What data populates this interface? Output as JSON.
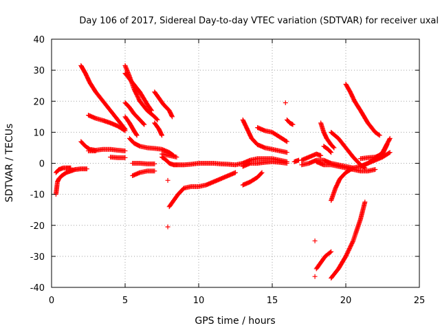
{
  "chart_data": {
    "type": "scatter",
    "title": "Day 106 of 2017, Sidereal Day-to-day VTEC variation (SDTVAR) for receiver uxal",
    "xlabel": "GPS time / hours",
    "ylabel": "SDTVAR / TECUs",
    "xlim": [
      0,
      25
    ],
    "ylim": [
      -40,
      40
    ],
    "x_ticks": [
      "0",
      "5",
      "10",
      "15",
      "20",
      "25"
    ],
    "y_ticks": [
      "-40",
      "-30",
      "-20",
      "-10",
      "0",
      "10",
      "20",
      "30",
      "40"
    ],
    "grid": true,
    "marker": "plus",
    "color": "#ff0000",
    "tracks": [
      [
        [
          0.3,
          -10
        ],
        [
          0.35,
          -8
        ],
        [
          0.4,
          -6
        ],
        [
          0.5,
          -5
        ],
        [
          0.7,
          -4
        ],
        [
          1.0,
          -3
        ],
        [
          1.3,
          -2.5
        ],
        [
          1.6,
          -2
        ],
        [
          2.0,
          -1.8
        ],
        [
          2.4,
          -1.8
        ]
      ],
      [
        [
          0.3,
          -3
        ],
        [
          0.5,
          -2
        ],
        [
          0.8,
          -1.5
        ],
        [
          1.0,
          -1.5
        ],
        [
          1.3,
          -1.5
        ]
      ],
      [
        [
          2.0,
          31.5
        ],
        [
          2.3,
          29
        ],
        [
          2.6,
          26
        ],
        [
          3.0,
          23
        ],
        [
          3.5,
          20
        ],
        [
          4.0,
          17
        ],
        [
          4.5,
          14
        ],
        [
          5.0,
          11
        ]
      ],
      [
        [
          2.5,
          15.5
        ],
        [
          3.0,
          14.5
        ],
        [
          3.5,
          13.8
        ],
        [
          4.0,
          13
        ],
        [
          4.5,
          12
        ],
        [
          5.0,
          10.5
        ]
      ],
      [
        [
          2.0,
          7
        ],
        [
          2.3,
          5.5
        ],
        [
          2.6,
          4.5
        ],
        [
          3.0,
          4.2
        ],
        [
          3.5,
          4.5
        ],
        [
          4.0,
          4.5
        ],
        [
          4.5,
          4.2
        ],
        [
          5.0,
          4
        ]
      ],
      [
        [
          2.5,
          4
        ],
        [
          3.0,
          4
        ]
      ],
      [
        [
          4.0,
          2
        ],
        [
          4.5,
          1.8
        ],
        [
          5.0,
          1.8
        ]
      ],
      [
        [
          5.0,
          31.5
        ],
        [
          5.3,
          28
        ],
        [
          5.6,
          24
        ],
        [
          6.0,
          20
        ],
        [
          6.5,
          17
        ],
        [
          7.0,
          15
        ],
        [
          7.2,
          14
        ]
      ],
      [
        [
          5.0,
          29
        ],
        [
          5.5,
          26
        ],
        [
          6.0,
          23
        ],
        [
          6.5,
          19
        ],
        [
          6.8,
          17
        ]
      ],
      [
        [
          5.0,
          19.5
        ],
        [
          5.3,
          18
        ],
        [
          5.6,
          16
        ],
        [
          6.0,
          14
        ],
        [
          6.3,
          12.5
        ]
      ],
      [
        [
          5.0,
          15
        ],
        [
          5.3,
          13
        ],
        [
          5.6,
          10.5
        ],
        [
          5.8,
          9
        ]
      ],
      [
        [
          7.0,
          23
        ],
        [
          7.3,
          21
        ],
        [
          7.6,
          19
        ],
        [
          8.0,
          17
        ],
        [
          8.2,
          15
        ]
      ],
      [
        [
          7.0,
          13
        ],
        [
          7.3,
          11
        ],
        [
          7.5,
          9
        ]
      ],
      [
        [
          5.3,
          8
        ],
        [
          5.6,
          6.5
        ],
        [
          6.0,
          5.5
        ],
        [
          6.5,
          5
        ],
        [
          7.0,
          4.8
        ],
        [
          7.5,
          4.5
        ],
        [
          8.0,
          3.5
        ],
        [
          8.3,
          2.5
        ]
      ],
      [
        [
          5.5,
          0
        ],
        [
          6.0,
          0
        ],
        [
          6.5,
          -0.2
        ],
        [
          7.0,
          -0.2
        ]
      ],
      [
        [
          5.5,
          -4
        ],
        [
          6.0,
          -3
        ],
        [
          6.5,
          -2.5
        ],
        [
          7.0,
          -2.5
        ]
      ],
      [
        [
          7.5,
          2
        ],
        [
          7.8,
          1
        ],
        [
          8.0,
          0
        ],
        [
          8.3,
          -0.5
        ],
        [
          8.6,
          -0.5
        ],
        [
          9.0,
          -0.5
        ],
        [
          9.5,
          -0.3
        ],
        [
          10.0,
          0
        ],
        [
          10.5,
          0
        ],
        [
          11.0,
          0
        ],
        [
          11.5,
          -0.2
        ],
        [
          12.0,
          -0.3
        ],
        [
          12.5,
          -0.5
        ],
        [
          13.0,
          0
        ]
      ],
      [
        [
          7.5,
          3
        ],
        [
          8.0,
          2.5
        ],
        [
          8.5,
          2
        ]
      ],
      [
        [
          8.0,
          -14
        ],
        [
          8.3,
          -12
        ],
        [
          8.6,
          -10
        ],
        [
          9.0,
          -8
        ],
        [
          9.5,
          -7.5
        ],
        [
          10.0,
          -7.5
        ],
        [
          10.5,
          -7
        ],
        [
          11.0,
          -6
        ],
        [
          11.5,
          -5
        ],
        [
          12.0,
          -4
        ],
        [
          12.5,
          -3
        ]
      ],
      [
        [
          7.9,
          -5.5
        ]
      ],
      [
        [
          7.9,
          -20.5
        ]
      ],
      [
        [
          13.0,
          14
        ],
        [
          13.3,
          11
        ],
        [
          13.6,
          8
        ],
        [
          14.0,
          6
        ],
        [
          14.5,
          5
        ],
        [
          15.0,
          4.5
        ],
        [
          15.5,
          4
        ],
        [
          16.0,
          3.5
        ]
      ],
      [
        [
          14.0,
          11.5
        ],
        [
          14.5,
          10.5
        ],
        [
          15.0,
          10
        ],
        [
          15.5,
          8.5
        ],
        [
          16.0,
          7
        ]
      ],
      [
        [
          13.0,
          0
        ],
        [
          13.5,
          1
        ],
        [
          14.0,
          1.5
        ],
        [
          14.5,
          1.5
        ],
        [
          15.0,
          1.5
        ],
        [
          15.5,
          1
        ],
        [
          16.0,
          0.5
        ]
      ],
      [
        [
          13.0,
          -1
        ],
        [
          13.5,
          0
        ],
        [
          14.0,
          0
        ],
        [
          14.5,
          0.3
        ],
        [
          15.0,
          0.5
        ],
        [
          15.5,
          0.3
        ],
        [
          16.0,
          0
        ]
      ],
      [
        [
          13.0,
          -7
        ],
        [
          13.5,
          -6
        ],
        [
          14.0,
          -4.5
        ],
        [
          14.3,
          -3
        ]
      ],
      [
        [
          15.9,
          19.5
        ]
      ],
      [
        [
          16.0,
          14
        ],
        [
          16.2,
          13
        ],
        [
          16.4,
          12.5
        ]
      ],
      [
        [
          16.5,
          0.5
        ],
        [
          16.8,
          1
        ]
      ],
      [
        [
          17.0,
          1
        ],
        [
          17.5,
          2
        ],
        [
          18.0,
          3
        ],
        [
          18.3,
          2.5
        ]
      ],
      [
        [
          17.0,
          -0.5
        ],
        [
          17.5,
          0
        ],
        [
          18.0,
          1
        ],
        [
          18.5,
          1
        ],
        [
          19.0,
          0
        ],
        [
          19.5,
          -0.5
        ],
        [
          20.0,
          -1
        ],
        [
          20.5,
          -1.5
        ]
      ],
      [
        [
          18.0,
          0.5
        ],
        [
          18.5,
          -0.5
        ],
        [
          19.0,
          -0.5
        ],
        [
          19.5,
          -1
        ],
        [
          20.0,
          -1.5
        ],
        [
          20.5,
          -2
        ],
        [
          21.0,
          -2.5
        ],
        [
          21.5,
          -2.5
        ],
        [
          22.0,
          -2
        ]
      ],
      [
        [
          18.3,
          13
        ],
        [
          18.5,
          10
        ],
        [
          18.7,
          8
        ],
        [
          19.0,
          6
        ],
        [
          19.2,
          5
        ]
      ],
      [
        [
          18.5,
          5.5
        ],
        [
          18.8,
          4.5
        ],
        [
          19.0,
          3.5
        ]
      ],
      [
        [
          19.0,
          10
        ],
        [
          19.5,
          8
        ],
        [
          20.0,
          5
        ],
        [
          20.5,
          2
        ],
        [
          21.0,
          -0.5
        ],
        [
          21.3,
          -1.5
        ]
      ],
      [
        [
          20.0,
          25.5
        ],
        [
          20.3,
          23
        ],
        [
          20.6,
          20
        ],
        [
          21.0,
          17
        ],
        [
          21.5,
          13
        ],
        [
          22.0,
          10
        ],
        [
          22.3,
          9
        ]
      ],
      [
        [
          19.0,
          -12
        ],
        [
          19.3,
          -8
        ],
        [
          19.6,
          -5
        ],
        [
          20.0,
          -3
        ],
        [
          20.5,
          -1.5
        ],
        [
          21.0,
          -1
        ],
        [
          21.5,
          0
        ],
        [
          22.0,
          1
        ],
        [
          22.5,
          2
        ],
        [
          23.0,
          3.5
        ]
      ],
      [
        [
          21.0,
          -1
        ],
        [
          21.5,
          0
        ],
        [
          22.0,
          1.5
        ],
        [
          22.5,
          3.5
        ],
        [
          23.0,
          8
        ]
      ],
      [
        [
          21.0,
          1.5
        ],
        [
          21.5,
          1.8
        ],
        [
          22.0,
          2
        ],
        [
          22.5,
          3
        ],
        [
          22.8,
          6
        ]
      ],
      [
        [
          19.0,
          -37
        ],
        [
          19.5,
          -34
        ],
        [
          20.0,
          -30
        ],
        [
          20.5,
          -25
        ],
        [
          21.0,
          -18
        ],
        [
          21.3,
          -12.5
        ]
      ],
      [
        [
          18.0,
          -34
        ],
        [
          18.3,
          -32
        ],
        [
          18.6,
          -30
        ],
        [
          19.0,
          -28.5
        ]
      ],
      [
        [
          17.9,
          -25
        ]
      ],
      [
        [
          17.9,
          -36.5
        ]
      ]
    ]
  }
}
